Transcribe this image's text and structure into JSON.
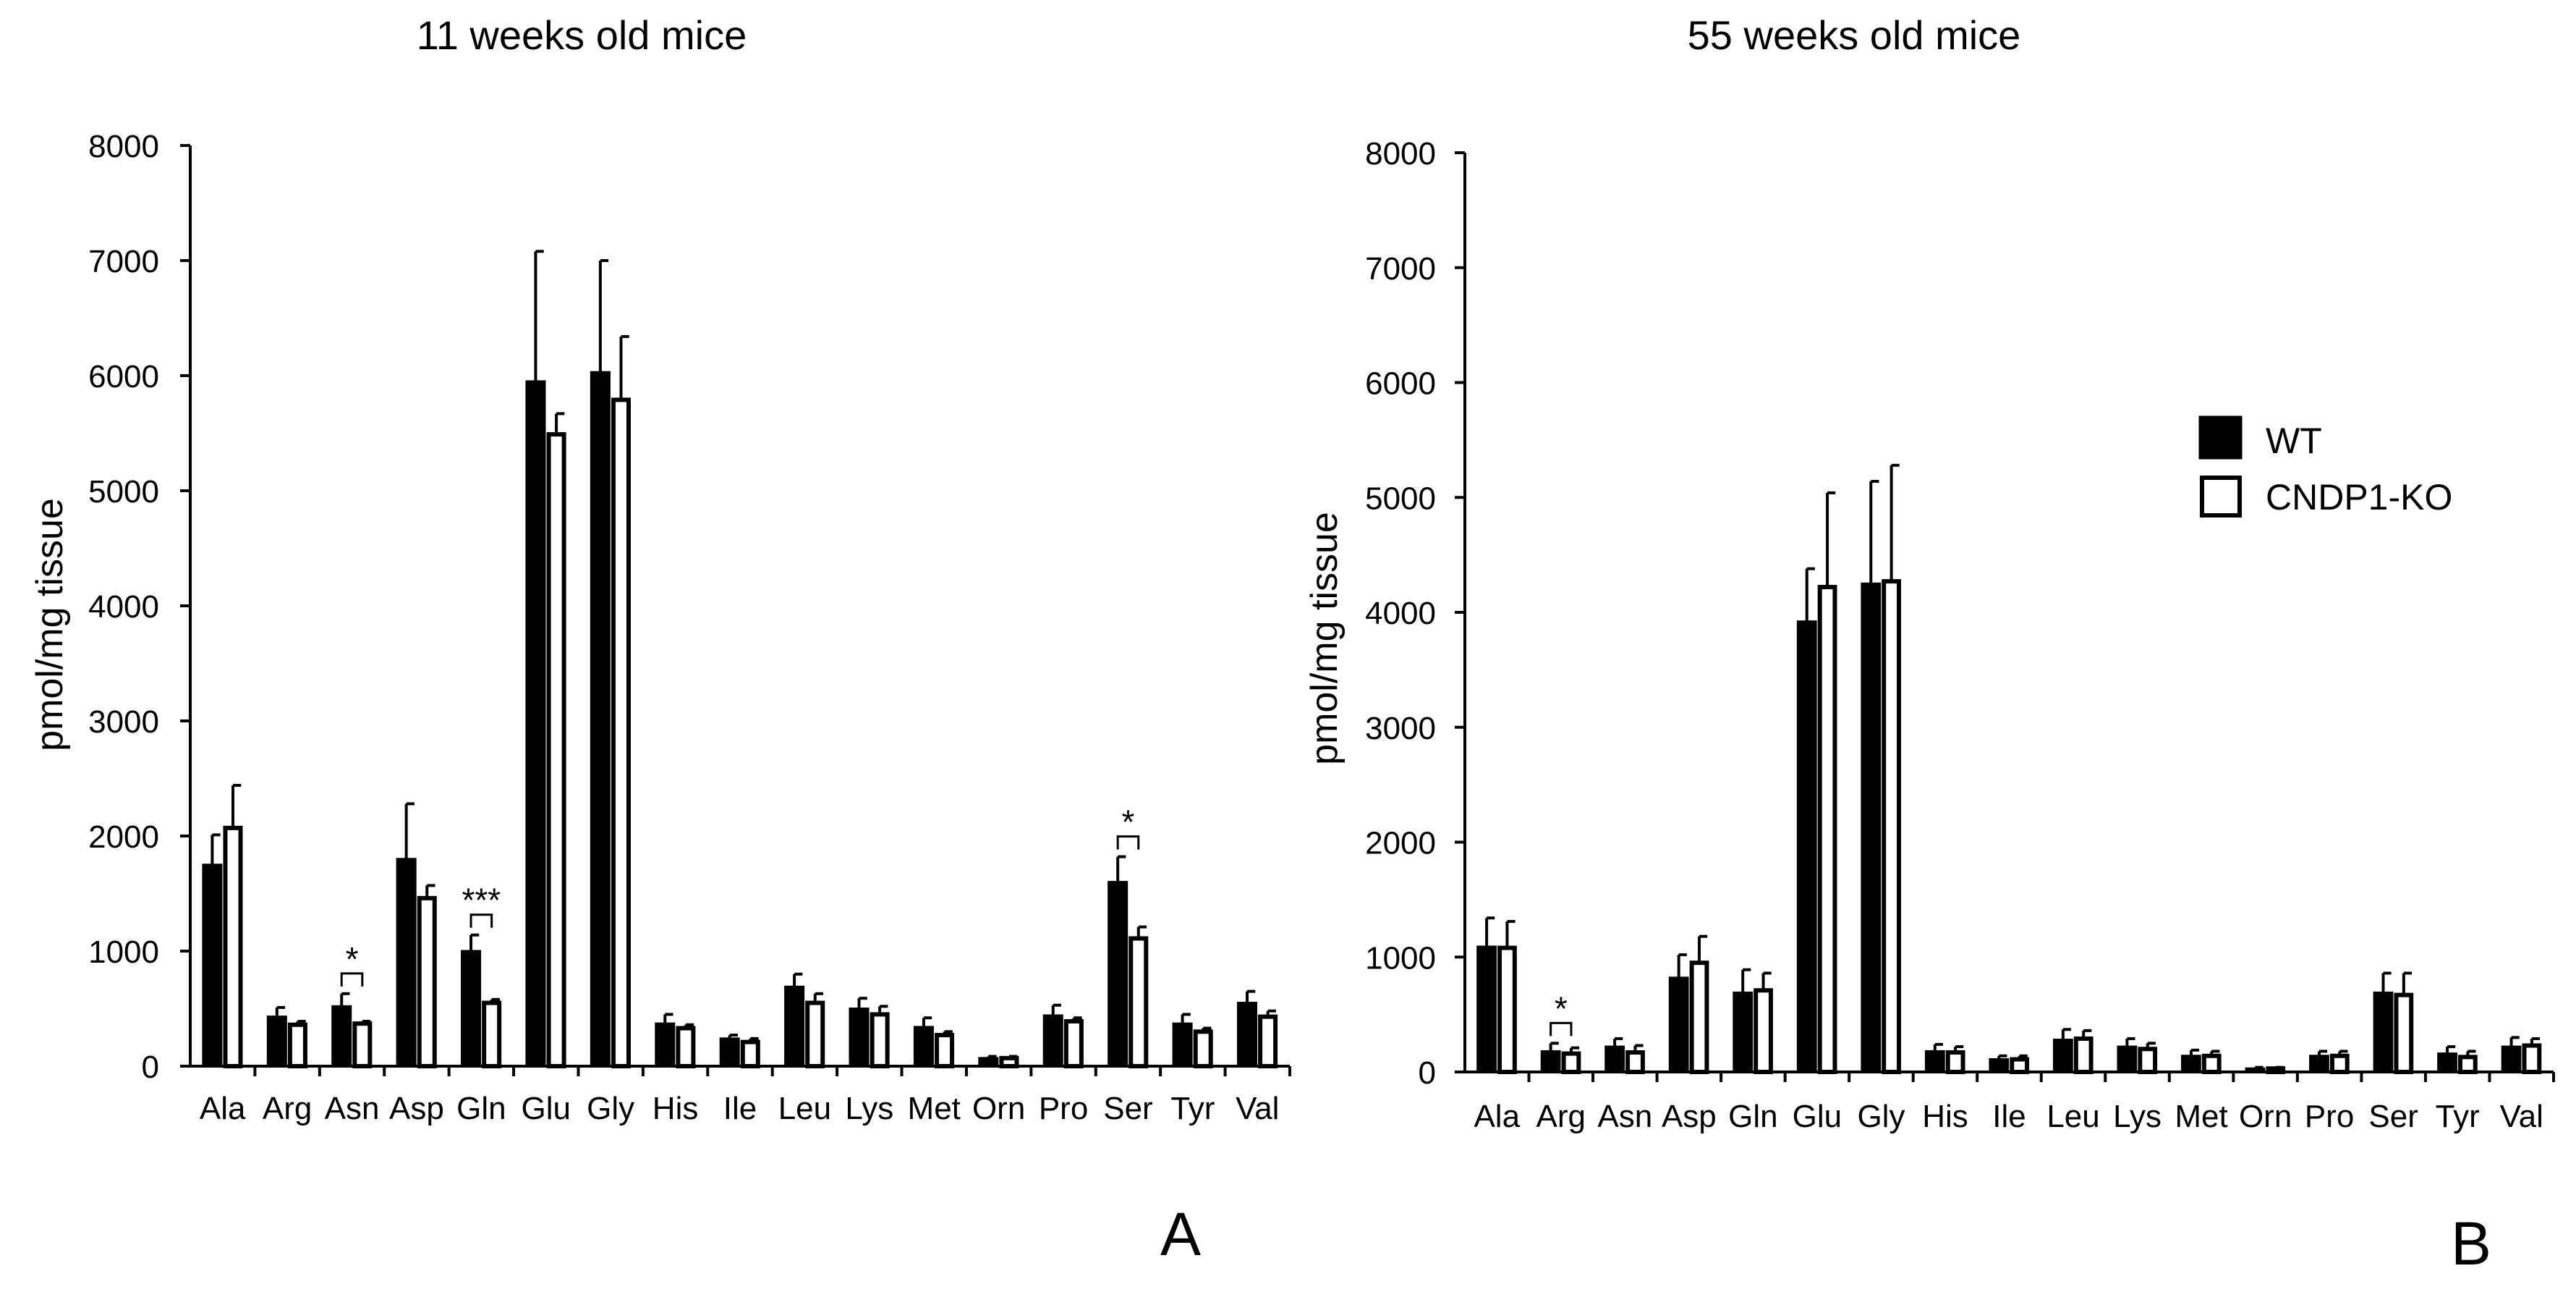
{
  "colors": {
    "wt": "#000000",
    "ko": "#ffffff",
    "axis": "#000000"
  },
  "legend": {
    "wt_label": "WT",
    "ko_label": "CNDP1-KO"
  },
  "chart_data": [
    {
      "type": "bar",
      "panel_label": "A",
      "title": "11 weeks old mice",
      "xlabel": "",
      "ylabel": "pmol/mg tissue",
      "ylim": [
        0,
        8000
      ],
      "yticks": [
        0,
        1000,
        2000,
        3000,
        4000,
        5000,
        6000,
        7000,
        8000
      ],
      "categories": [
        "Ala",
        "Arg",
        "Asn",
        "Asp",
        "Gln",
        "Glu",
        "Gly",
        "His",
        "Ile",
        "Leu",
        "Lys",
        "Met",
        "Orn",
        "Pro",
        "Ser",
        "Tyr",
        "Val"
      ],
      "series": [
        {
          "name": "WT",
          "values": [
            1750,
            430,
            520,
            1800,
            1000,
            5950,
            6030,
            370,
            240,
            690,
            500,
            340,
            70,
            440,
            1600,
            370,
            550
          ],
          "errors": [
            260,
            80,
            110,
            480,
            140,
            1130,
            970,
            80,
            30,
            110,
            90,
            80,
            15,
            90,
            220,
            80,
            100
          ]
        },
        {
          "name": "CNDP1-KO",
          "values": [
            2070,
            360,
            370,
            1460,
            550,
            5490,
            5790,
            330,
            210,
            550,
            450,
            270,
            70,
            390,
            1110,
            300,
            430
          ],
          "errors": [
            370,
            30,
            20,
            110,
            30,
            180,
            550,
            30,
            30,
            80,
            70,
            30,
            15,
            30,
            100,
            30,
            50
          ]
        }
      ],
      "annotations": [
        {
          "category": "Asn",
          "text": "*"
        },
        {
          "category": "Gln",
          "text": "***"
        },
        {
          "category": "Ser",
          "text": "*"
        }
      ]
    },
    {
      "type": "bar",
      "panel_label": "B",
      "title": "55 weeks old mice",
      "xlabel": "",
      "ylabel": "pmol/mg tissue",
      "ylim": [
        0,
        8000
      ],
      "yticks": [
        0,
        1000,
        2000,
        3000,
        4000,
        5000,
        6000,
        7000,
        8000
      ],
      "categories": [
        "Ala",
        "Arg",
        "Asn",
        "Asp",
        "Gln",
        "Glu",
        "Gly",
        "His",
        "Ile",
        "Leu",
        "Lys",
        "Met",
        "Orn",
        "Pro",
        "Ser",
        "Tyr",
        "Val"
      ],
      "series": [
        {
          "name": "WT",
          "values": [
            1090,
            180,
            220,
            820,
            690,
            3920,
            4250,
            180,
            110,
            280,
            220,
            140,
            30,
            140,
            690,
            160,
            220
          ],
          "errors": [
            250,
            70,
            70,
            200,
            200,
            460,
            890,
            60,
            30,
            90,
            70,
            50,
            10,
            40,
            170,
            60,
            80
          ]
        },
        {
          "name": "CNDP1-KO",
          "values": [
            1080,
            160,
            170,
            950,
            710,
            4220,
            4270,
            170,
            110,
            290,
            200,
            140,
            30,
            140,
            670,
            130,
            230
          ],
          "errors": [
            230,
            50,
            60,
            230,
            150,
            820,
            1010,
            50,
            30,
            70,
            50,
            40,
            10,
            40,
            190,
            50,
            60
          ]
        }
      ],
      "annotations": [
        {
          "category": "Arg",
          "text": "*"
        }
      ]
    }
  ]
}
